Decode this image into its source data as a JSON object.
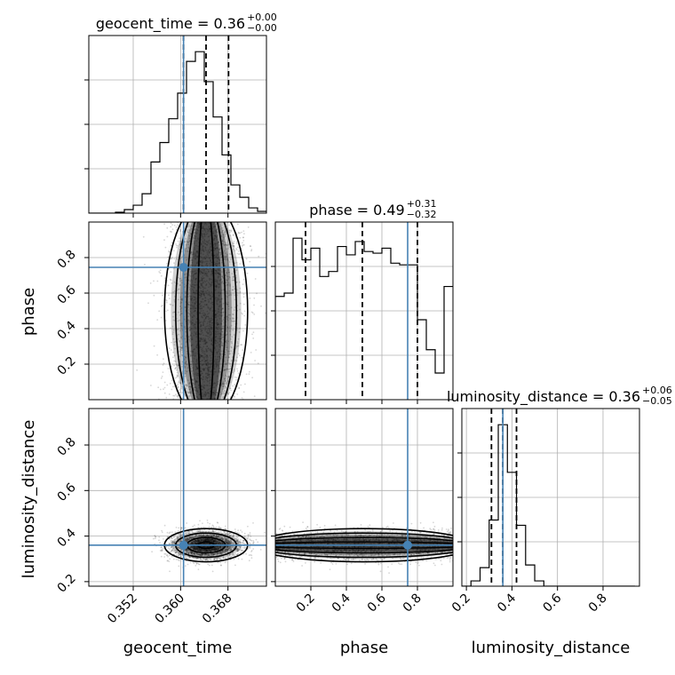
{
  "chart_data": {
    "type": "corner",
    "parameters": [
      "geocent_time",
      "phase",
      "luminosity_distance"
    ],
    "truths": {
      "geocent_time": 0.3605,
      "phase": 0.745,
      "luminosity_distance": 0.36
    },
    "ranges": {
      "geocent_time": [
        0.3445,
        0.3745
      ],
      "phase": [
        0.0,
        1.0
      ],
      "luminosity_distance": [
        0.18,
        0.96
      ]
    },
    "ticks": {
      "geocent_time": [
        0.352,
        0.36,
        0.368
      ],
      "phase": [
        0.2,
        0.4,
        0.6,
        0.8
      ],
      "luminosity_distance": [
        0.2,
        0.4,
        0.6,
        0.8
      ]
    },
    "tick_labels": {
      "geocent_time": [
        "0.352",
        "0.360",
        "0.368"
      ],
      "phase": [
        "0.2",
        "0.4",
        "0.6",
        "0.8"
      ],
      "luminosity_distance": [
        "0.2",
        "0.4",
        "0.6",
        "0.8"
      ]
    },
    "titles": [
      {
        "param": "geocent_time",
        "prefix": "geocent_time = 0.36",
        "upper": "+0.00",
        "lower": "−0.00"
      },
      {
        "param": "phase",
        "prefix": "phase = 0.49",
        "upper": "+0.31",
        "lower": "−0.32"
      },
      {
        "param": "luminosity_distance",
        "prefix": "luminosity_distance = 0.36",
        "upper": "+0.06",
        "lower": "−0.05"
      }
    ],
    "quantiles": {
      "geocent_time": [
        0.3605,
        0.3643,
        0.3681
      ],
      "phase": [
        0.17,
        0.49,
        0.8
      ],
      "luminosity_distance": [
        0.31,
        0.36,
        0.42
      ]
    },
    "histograms": {
      "geocent_time": {
        "edges": [
          0.3445,
          0.346,
          0.3475,
          0.349,
          0.3505,
          0.352,
          0.3535,
          0.355,
          0.3565,
          0.358,
          0.3595,
          0.361,
          0.3625,
          0.364,
          0.3655,
          0.367,
          0.3685,
          0.37,
          0.3715,
          0.373,
          0.3745
        ],
        "counts": [
          0,
          0,
          0,
          1,
          4,
          9,
          22,
          58,
          80,
          107,
          136,
          172,
          183,
          149,
          109,
          66,
          32,
          18,
          6,
          2
        ]
      },
      "phase": {
        "edges": [
          0.0,
          0.05,
          0.1,
          0.15,
          0.2,
          0.25,
          0.3,
          0.35,
          0.4,
          0.45,
          0.5,
          0.55,
          0.6,
          0.65,
          0.7,
          0.75,
          0.8,
          0.85,
          0.9,
          0.95,
          1.0
        ],
        "counts": [
          62,
          64,
          97,
          84,
          91,
          74,
          77,
          92,
          87,
          95,
          89,
          88,
          91,
          82,
          81,
          81,
          48,
          30,
          16,
          68
        ]
      },
      "luminosity_distance": {
        "edges": [
          0.18,
          0.22,
          0.26,
          0.3,
          0.34,
          0.38,
          0.42,
          0.46,
          0.5,
          0.54,
          0.58,
          0.62,
          0.66,
          0.7,
          0.74,
          0.78,
          0.82,
          0.86,
          0.9,
          0.94
        ],
        "counts": [
          0,
          2,
          7,
          25,
          61,
          43,
          23,
          8,
          2,
          0,
          0,
          0,
          0,
          0,
          0,
          0,
          0,
          0,
          0
        ]
      }
    }
  }
}
